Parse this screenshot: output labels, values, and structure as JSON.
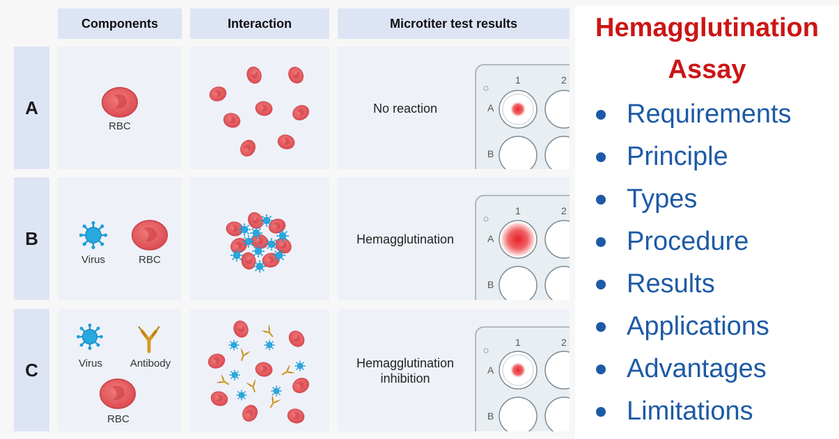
{
  "headers": {
    "components": "Components",
    "interaction": "Interaction",
    "results": "Microtiter test results"
  },
  "rows": [
    {
      "label": "A",
      "components": [
        "RBC"
      ],
      "result": "No reaction",
      "plate_outcome": "button"
    },
    {
      "label": "B",
      "components": [
        "Virus",
        "RBC"
      ],
      "result": "Hemagglutination",
      "plate_outcome": "diffuse-mat"
    },
    {
      "label": "C",
      "components": [
        "Virus",
        "Antibody",
        "RBC"
      ],
      "result": "Hemagglutination\ninhibition",
      "plate_outcome": "button"
    }
  ],
  "plate": {
    "col_1": "1",
    "col_2": "2",
    "row_a": "A",
    "row_b": "B"
  },
  "title": {
    "line1": "Hemagglutination",
    "line2": "Assay"
  },
  "toc": [
    "Requirements",
    "Principle",
    "Types",
    "Procedure",
    "Results",
    "Applications",
    "Advantages",
    "Limitations"
  ],
  "colors": {
    "title": "#cc1515",
    "toc": "#1d5aa5",
    "rbc": "#e8585c",
    "virus": "#1e9fd6",
    "antibody": "#d49a22",
    "header_bg": "#dde5f5"
  }
}
